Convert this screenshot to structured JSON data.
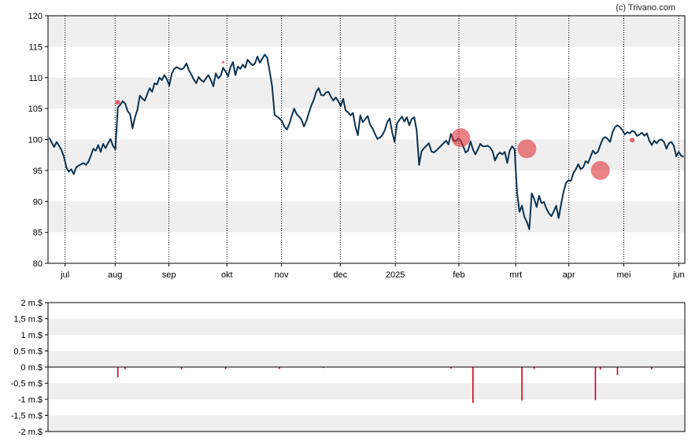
{
  "watermark": "(c) Trivano.com",
  "colors": {
    "line": "#0b3250",
    "band": "#efefef",
    "marker": "#e0303a",
    "bar": "#d0021b",
    "axis": "#000000"
  },
  "chart_data": [
    {
      "type": "line",
      "ylim": [
        80,
        120
      ],
      "y_ticks": [
        "120",
        "115",
        "110",
        "105",
        "100",
        "95",
        "90",
        "85",
        "80"
      ],
      "x_ticks": [
        "jul",
        "aug",
        "sep",
        "okt",
        "nov",
        "dec",
        "2025",
        "feb",
        "mrt",
        "apr",
        "mei",
        "jun"
      ],
      "series": [
        {
          "values": [
            100.3,
            99.5,
            98.8,
            99.6,
            99.0,
            98.3,
            97.2,
            95.5,
            94.8,
            95.2,
            94.4,
            95.5,
            95.8,
            96.0,
            96.2,
            95.9,
            96.4,
            97.4,
            98.5,
            98.2,
            99.1,
            98.0,
            99.3,
            98.6,
            99.4,
            100.1,
            99.0,
            98.4,
            105.2,
            105.6,
            106.2,
            105.8,
            104.6,
            104.1,
            101.8,
            103.6,
            104.8,
            107.1,
            106.6,
            106.3,
            107.3,
            108.3,
            107.7,
            109.1,
            108.9,
            110.0,
            109.6,
            110.4,
            109.8,
            108.7,
            110.6,
            111.4,
            111.7,
            111.5,
            111.3,
            111.6,
            112.3,
            111.2,
            110.5,
            109.7,
            109.1,
            110.1,
            109.6,
            109.3,
            109.9,
            110.4,
            109.6,
            108.6,
            110.7,
            109.9,
            110.3,
            111.6,
            111.0,
            110.2,
            111.7,
            112.5,
            110.4,
            111.8,
            111.4,
            112.1,
            111.6,
            112.9,
            112.4,
            112.0,
            112.3,
            113.4,
            112.4,
            113.1,
            113.7,
            113.2,
            111.0,
            108.6,
            104.0,
            103.7,
            103.4,
            103.0,
            102.1,
            101.6,
            102.5,
            103.8,
            105.0,
            104.1,
            103.7,
            103.2,
            102.1,
            103.0,
            104.3,
            105.5,
            106.4,
            107.7,
            108.3,
            107.2,
            107.1,
            107.6,
            107.7,
            106.9,
            106.3,
            106.8,
            106.2,
            105.4,
            106.6,
            104.7,
            104.4,
            103.9,
            104.3,
            102.1,
            100.7,
            103.9,
            102.8,
            103.3,
            103.8,
            102.4,
            101.8,
            100.9,
            100.1,
            100.3,
            100.7,
            101.5,
            102.8,
            103.4,
            101.2,
            99.6,
            102.6,
            103.2,
            103.7,
            102.9,
            103.6,
            102.3,
            103.3,
            103.6,
            101.5,
            95.9,
            98.1,
            98.6,
            99.0,
            99.4,
            98.1,
            97.9,
            98.2,
            98.6,
            99.0,
            99.4,
            99.8,
            99.2,
            100.9,
            99.9,
            99.7,
            100.2,
            99.8,
            98.9,
            97.9,
            98.2,
            99.7,
            98.4,
            97.6,
            98.4,
            99.3,
            98.9,
            98.9,
            99.0,
            98.7,
            98.1,
            96.6,
            97.5,
            97.9,
            97.6,
            98.0,
            96.2,
            98.2,
            98.9,
            98.4,
            91.4,
            88.3,
            89.3,
            87.5,
            86.7,
            85.5,
            91.3,
            90.4,
            89.1,
            90.9,
            89.7,
            89.9,
            88.8,
            88.1,
            87.6,
            88.4,
            89.3,
            87.3,
            89.6,
            91.6,
            93.0,
            93.4,
            93.3,
            94.6,
            95.2,
            96.0,
            95.2,
            95.5,
            96.5,
            96.2,
            97.2,
            98.2,
            97.7,
            98.0,
            99.1,
            100.1,
            100.4,
            100.1,
            99.6,
            101.2,
            102.0,
            102.3,
            102.0,
            101.5,
            100.8,
            101.2,
            101.0,
            101.4,
            101.2,
            100.6,
            100.8,
            101.1,
            100.6,
            101.0,
            99.8,
            99.1,
            99.8,
            99.4,
            99.9,
            100.0,
            99.6,
            98.5,
            99.4,
            99.6,
            99.0,
            97.3,
            98.0,
            97.4,
            97.2
          ]
        }
      ],
      "markers": [
        {
          "index": 28,
          "value": 106.0,
          "size": "small"
        },
        {
          "index": 71,
          "value": 112.5,
          "size": "tiny"
        },
        {
          "index": 168,
          "value": 100.3,
          "size": "large"
        },
        {
          "index": 195,
          "value": 98.5,
          "size": "large"
        },
        {
          "index": 225,
          "value": 95.0,
          "size": "large"
        },
        {
          "index": 238,
          "value": 99.9,
          "size": "small"
        }
      ]
    },
    {
      "type": "bar",
      "unit": "m.$",
      "ylim": [
        -2,
        2
      ],
      "y_ticks": [
        "2 m.$",
        "1,5 m.$",
        "1 m.$",
        "0,5 m.$",
        "0 m.$",
        "-0,5 m.$",
        "-1 m.$",
        "-1,5 m.$",
        "-2 m.$"
      ],
      "bars": [
        {
          "index": 28,
          "value": -0.32
        },
        {
          "index": 31,
          "value": -0.07
        },
        {
          "index": 54,
          "value": -0.07
        },
        {
          "index": 72,
          "value": -0.07
        },
        {
          "index": 94,
          "value": -0.06
        },
        {
          "index": 112,
          "value": -0.03
        },
        {
          "index": 164,
          "value": -0.05
        },
        {
          "index": 173,
          "value": -1.11
        },
        {
          "index": 193,
          "value": -1.04
        },
        {
          "index": 198,
          "value": -0.06
        },
        {
          "index": 223,
          "value": -1.03
        },
        {
          "index": 225,
          "value": -0.08
        },
        {
          "index": 232,
          "value": -0.25
        },
        {
          "index": 246,
          "value": -0.07
        }
      ]
    }
  ]
}
